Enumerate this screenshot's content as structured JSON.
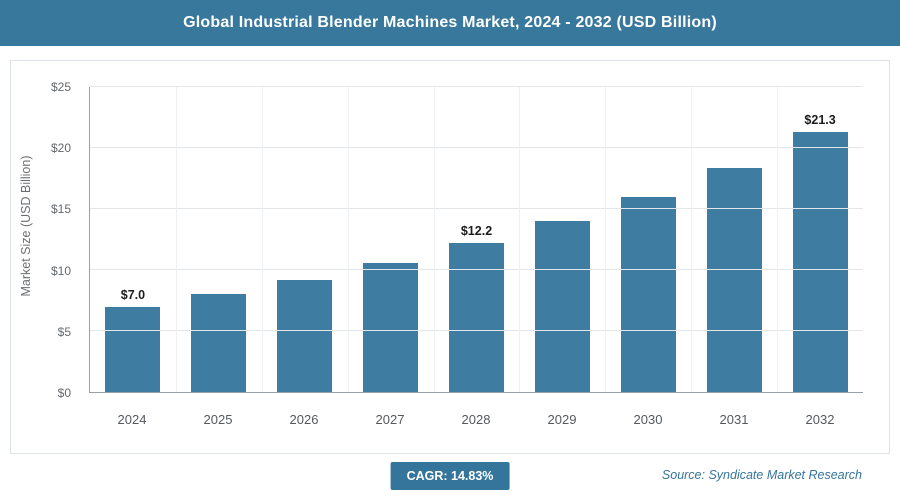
{
  "header": {
    "title": "Global Industrial Blender Machines Market, 2024 - 2032 (USD Billion)"
  },
  "chart_data": {
    "type": "bar",
    "title": "Global Industrial Blender Machines Market, 2024 - 2032 (USD Billion)",
    "categories": [
      "2024",
      "2025",
      "2026",
      "2027",
      "2028",
      "2029",
      "2030",
      "2031",
      "2032"
    ],
    "values": [
      7.0,
      8.0,
      9.2,
      10.6,
      12.2,
      14.0,
      16.0,
      18.4,
      21.3
    ],
    "data_labels": [
      "$7.0",
      "",
      "",
      "",
      "$12.2",
      "",
      "",
      "",
      "$21.3"
    ],
    "xlabel": "",
    "ylabel": "Market Size (USD Billion)",
    "ylim": [
      0,
      25
    ],
    "yticks": [
      0,
      5,
      10,
      15,
      20,
      25
    ],
    "ytick_labels": [
      "$0",
      "$5",
      "$10",
      "$15",
      "$20",
      "$25"
    ],
    "bar_color": "#3e7ca2",
    "grid": true,
    "legend": "none"
  },
  "footer": {
    "cagr_label": "CAGR: 14.83%",
    "source": "Source: Syndicate Market Research"
  },
  "colors": {
    "header_bg": "#38789c",
    "bar": "#3e7ca2",
    "badge_bg": "#35759b",
    "source_text": "#35759b"
  }
}
